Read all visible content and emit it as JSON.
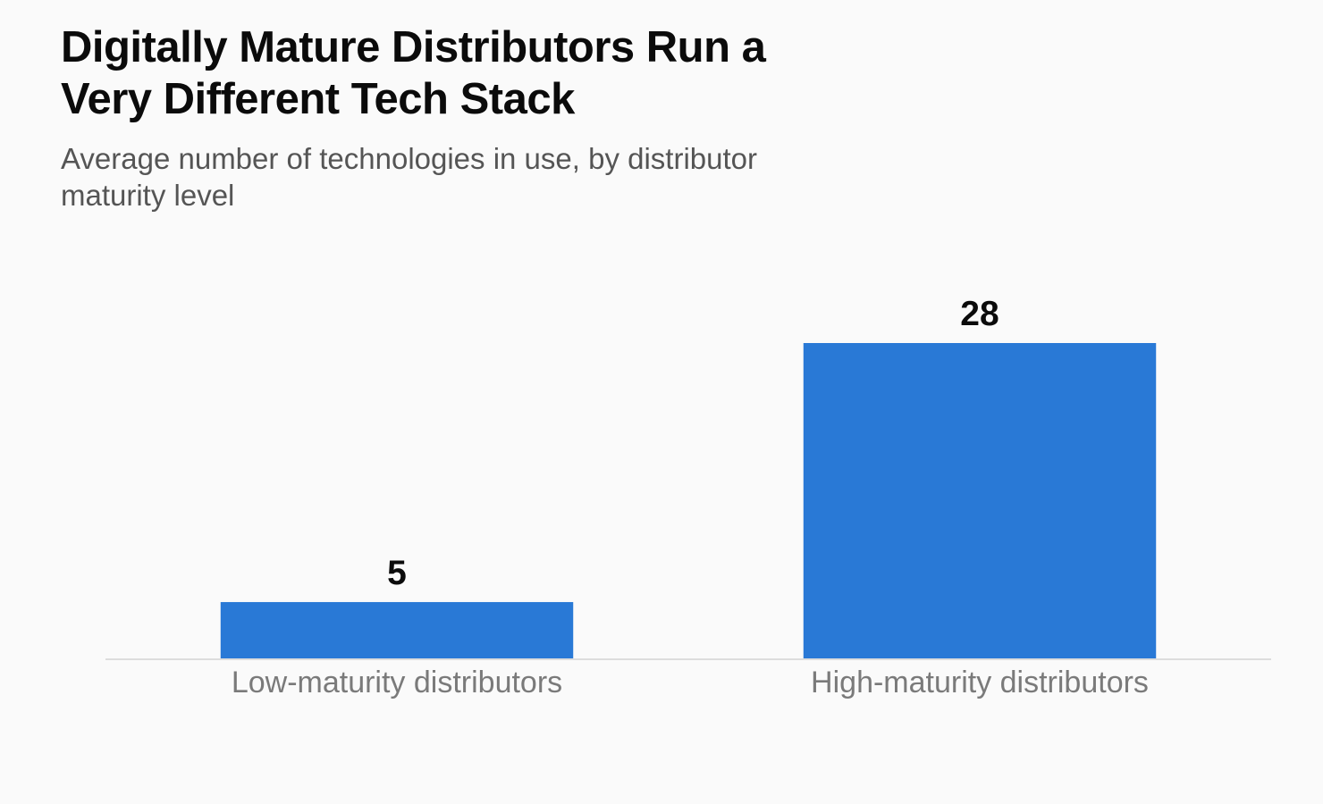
{
  "chart_data": {
    "type": "bar",
    "title": "Digitally Mature Distributors Run a\nVery Different Tech Stack",
    "subtitle": "Average number of technologies in use, by distributor\nmaturity level",
    "categories": [
      "Low-maturity distributors",
      "High-maturity distributors"
    ],
    "values": [
      5,
      28
    ],
    "data_labels": [
      "5",
      "28"
    ],
    "xlabel": "",
    "ylabel": "",
    "ylim": [
      0,
      28
    ],
    "grid": false,
    "legend": "none",
    "bar_color": "#2979d6",
    "baseline_color": "#dddddd"
  }
}
